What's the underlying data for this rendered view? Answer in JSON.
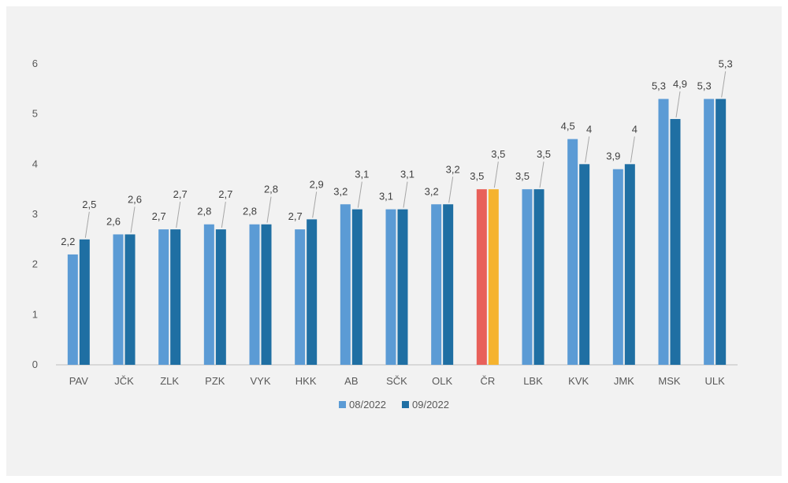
{
  "chart_data": {
    "type": "bar",
    "categories": [
      "PAV",
      "JČK",
      "ZLK",
      "PZK",
      "VYK",
      "HKK",
      "AB",
      "SČK",
      "OLK",
      "ČR",
      "LBK",
      "KVK",
      "JMK",
      "MSK",
      "ULK"
    ],
    "series": [
      {
        "name": "08/2022",
        "color": "#5b9bd5",
        "values": [
          2.2,
          2.6,
          2.7,
          2.8,
          2.8,
          2.7,
          3.2,
          3.1,
          3.2,
          3.5,
          3.5,
          4.5,
          3.9,
          5.3,
          5.3
        ],
        "labels": [
          "2,2",
          "2,6",
          "2,7",
          "2,8",
          "2,8",
          "2,7",
          "3,2",
          "3,1",
          "3,2",
          "3,5",
          "3,5",
          "4,5",
          "3,9",
          "5,3",
          "5,3"
        ]
      },
      {
        "name": "09/2022",
        "color": "#1f6fa3",
        "values": [
          2.5,
          2.6,
          2.7,
          2.7,
          2.8,
          2.9,
          3.1,
          3.1,
          3.2,
          3.5,
          3.5,
          4.0,
          4.0,
          4.9,
          5.3
        ],
        "labels": [
          "2,5",
          "2,6",
          "2,7",
          "2,7",
          "2,8",
          "2,9",
          "3,1",
          "3,1",
          "3,2",
          "3,5",
          "3,5",
          "4",
          "4",
          "4,9",
          "5,3"
        ]
      }
    ],
    "highlight": {
      "category": "ČR",
      "colors": [
        "#e8605a",
        "#f5b32f"
      ]
    },
    "y_ticks": [
      "0",
      "1",
      "2",
      "3",
      "4",
      "5",
      "6"
    ],
    "ylim": [
      0,
      6
    ],
    "grid": false,
    "legend_position": "bottom"
  }
}
